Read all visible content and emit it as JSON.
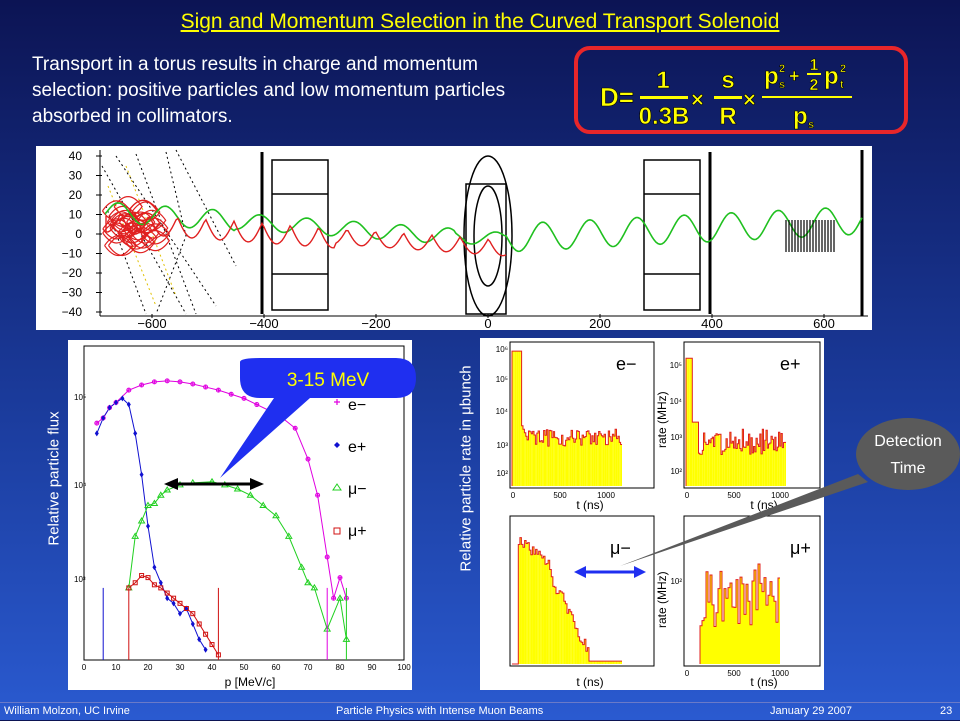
{
  "slide": {
    "title": "Sign and Momentum Selection in the Curved Transport Solenoid",
    "intro": "Transport in a torus results in charge and momentum selection: positive particles and low momentum particles absorbed in collimators.",
    "colors": {
      "accent_title": "#ffff00",
      "formula_border": "#e8262a",
      "callout_blue": "#1f2ff0",
      "callout_grey": "#5a5a5a"
    }
  },
  "formula": {
    "lhs": "D=",
    "frac1_num": "1",
    "frac1_den": "0.3B",
    "times": "×",
    "frac2_num": "s",
    "frac2_den": "R",
    "ps": "p",
    "sub_s": "s",
    "sup_2": "2",
    "plus": "+",
    "half_num": "1",
    "half_den": "2",
    "pt": "p",
    "sub_t": "t"
  },
  "track_plot": {
    "y_ticks": [
      "40",
      "30",
      "20",
      "10",
      "0",
      "−10",
      "−20",
      "−30",
      "−40"
    ],
    "x_ticks": [
      "−600",
      "−400",
      "−200",
      "0",
      "200",
      "400",
      "600"
    ]
  },
  "flux_plot": {
    "ylabel": "Relative particle flux",
    "xlabel": "p [MeV/c]",
    "y_ticks": [
      "10⁵",
      "10⁴",
      "10³"
    ],
    "x_ticks": [
      "0",
      "10",
      "20",
      "30",
      "40",
      "50",
      "60",
      "70",
      "80",
      "90",
      "100"
    ],
    "legend": [
      "e−",
      "e+",
      "μ−",
      "μ+"
    ],
    "callout": "3-15 MeV"
  },
  "rate_plot": {
    "ylabel": "Relative particle rate in μbunch",
    "panels": [
      {
        "label": "e−",
        "xlabel": "t (ns)",
        "y_ticks": [
          "10⁶",
          "10⁵",
          "10⁴",
          "10³",
          "10²"
        ],
        "x_ticks": [
          "0",
          "500",
          "1000"
        ]
      },
      {
        "label": "e+",
        "xlabel": "t (ns)",
        "ylabel": "rate (MHz)",
        "y_ticks": [
          "10⁵",
          "10⁴",
          "10³",
          "10²"
        ],
        "x_ticks": [
          "0",
          "500",
          "1000"
        ]
      },
      {
        "label": "μ−",
        "xlabel": "t (ns)",
        "y_ticks": [],
        "x_ticks": []
      },
      {
        "label": "μ+",
        "xlabel": "t (ns)",
        "ylabel": "rate (MHz)",
        "y_ticks": [
          "10²"
        ],
        "x_ticks": [
          "0",
          "500",
          "1000"
        ]
      }
    ],
    "callout": [
      "Detection",
      "Time"
    ]
  },
  "footer": {
    "left": "William Molzon, UC Irvine",
    "center": "Particle Physics with Intense Muon Beams",
    "right": "January 29 2007",
    "page": "23"
  }
}
